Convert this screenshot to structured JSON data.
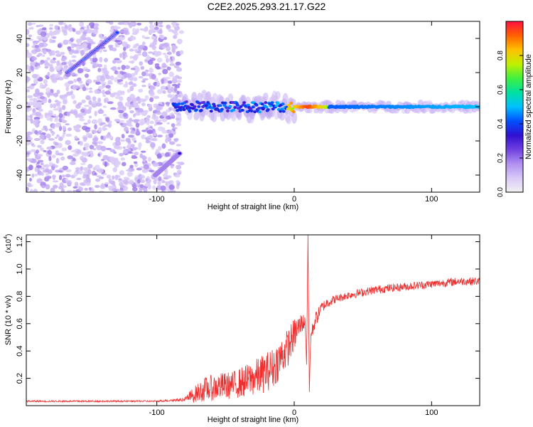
{
  "title": "C2E2.2025.293.21.17.G22",
  "colors": {
    "snr_line": "#ee3030",
    "blob_strong": "#5a18d0",
    "blob_weak": "#c8b0f4",
    "axis": "#000000"
  },
  "chart_data": [
    {
      "type": "heatmap",
      "xlabel": "Height of straight line (km)",
      "ylabel": "Frequency (Hz)",
      "xlim": [
        -195,
        135
      ],
      "ylim": [
        -50,
        50
      ],
      "x_ticks": [
        -100,
        0,
        100
      ],
      "x_tick_labels": [
        "-100",
        "0",
        "100"
      ],
      "y_ticks": [
        -40,
        -20,
        0,
        20,
        40
      ],
      "y_tick_labels": [
        "-40",
        "-20",
        "0",
        "20",
        "40"
      ],
      "colorbar": {
        "label": "Normalized spectral amplitude",
        "range": [
          0,
          1
        ],
        "ticks": [
          0.0,
          0.2,
          0.4,
          0.6,
          0.8
        ],
        "tick_labels": [
          "0.0",
          "0.2",
          "0.4",
          "0.6",
          "0.8"
        ],
        "colormap": [
          "#f2f2f2",
          "#d8c8f8",
          "#b090f0",
          "#7040e0",
          "#3010d0",
          "#0050ff",
          "#00c0ff",
          "#00e0a0",
          "#40f040",
          "#c0f000",
          "#ffc000",
          "#ff6000",
          "#ff1040"
        ]
      },
      "features": [
        {
          "kind": "track",
          "x": [
            -165,
            -128
          ],
          "y": [
            20,
            44
          ],
          "amplitude": 0.35
        },
        {
          "kind": "track",
          "x": [
            -101,
            -83
          ],
          "y": [
            -40,
            -27
          ],
          "amplitude": 0.3
        },
        {
          "kind": "band",
          "x": [
            -88,
            135
          ],
          "y": [
            0,
            0
          ],
          "amplitude_at_start": 0.35,
          "amplitude_at_end": 0.5,
          "peak_x": 10,
          "peak_amplitude": 0.95
        }
      ],
      "noise_region_x": [
        -195,
        -82
      ]
    },
    {
      "type": "line",
      "xlabel": "Height of straight line (km)",
      "ylabel": "SNR (10 * v/v)",
      "y_multiplier_label": "(x10",
      "y_multiplier_exp": "4",
      "y_multiplier_close": ")",
      "xlim": [
        -195,
        135
      ],
      "ylim": [
        0,
        1.25
      ],
      "x_ticks": [
        -100,
        0,
        100
      ],
      "x_tick_labels": [
        "-100",
        "0",
        "100"
      ],
      "y_ticks": [
        0.2,
        0.4,
        0.6,
        0.8,
        1.0,
        1.2
      ],
      "y_tick_labels": [
        "0.2",
        "0.4",
        "0.6",
        "0.8",
        "1.0",
        "1.2"
      ],
      "series": [
        {
          "x": [
            -195,
            -150,
            -100,
            -80,
            -75,
            -65,
            -55,
            -45,
            -35,
            -25,
            -15,
            -5,
            0,
            5,
            8,
            9,
            10,
            11,
            12,
            15,
            20,
            25,
            30,
            40,
            50,
            60,
            70,
            80,
            90,
            100,
            110,
            120,
            135
          ],
          "y": [
            0.03,
            0.03,
            0.03,
            0.04,
            0.07,
            0.12,
            0.14,
            0.15,
            0.18,
            0.22,
            0.28,
            0.42,
            0.52,
            0.6,
            0.62,
            0.3,
            1.25,
            0.1,
            0.5,
            0.62,
            0.72,
            0.76,
            0.78,
            0.81,
            0.83,
            0.85,
            0.86,
            0.87,
            0.88,
            0.89,
            0.9,
            0.91,
            0.91
          ],
          "noise_amplitude": [
            0.01,
            0.01,
            0.01,
            0.02,
            0.05,
            0.09,
            0.1,
            0.1,
            0.12,
            0.14,
            0.15,
            0.14,
            0.12,
            0.08,
            0.05,
            0.0,
            0.0,
            0.0,
            0.05,
            0.06,
            0.04,
            0.04,
            0.03,
            0.03,
            0.03,
            0.03,
            0.03,
            0.03,
            0.03,
            0.03,
            0.03,
            0.03,
            0.03
          ]
        }
      ]
    }
  ]
}
